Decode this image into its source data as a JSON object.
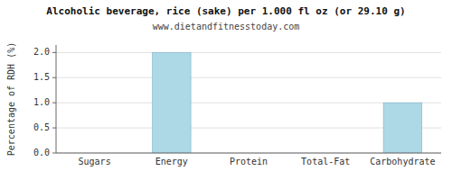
{
  "chart_data": {
    "type": "bar",
    "title": "Alcoholic beverage, rice (sake) per 1.000 fl oz (or 29.10 g)",
    "subtitle": "www.dietandfitnesstoday.com",
    "categories": [
      "Sugars",
      "Energy",
      "Protein",
      "Total-Fat",
      "Carbohydrate"
    ],
    "values": [
      0.0,
      2.0,
      0.0,
      0.0,
      1.0
    ],
    "color": "#add8e6",
    "ylabel": "Percentage of RDH (%)",
    "ylim": [
      0,
      2.15
    ],
    "yticks": [
      {
        "value": 0.0,
        "label": "0.0"
      },
      0.5,
      {
        "value": 1.0,
        "label": "1.0"
      },
      1.5,
      {
        "value": 2.0,
        "label": "2.0"
      }
    ],
    "grid": true
  }
}
